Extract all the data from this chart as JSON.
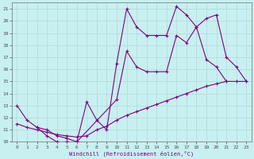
{
  "xlabel": "Windchill (Refroidissement éolien,°C)",
  "bg_color": "#c8f0f0",
  "grid_color": "#b0d8d8",
  "line_color": "#800080",
  "xlim": [
    -0.5,
    23.5
  ],
  "ylim": [
    10,
    21.5
  ],
  "yticks": [
    10,
    11,
    12,
    13,
    14,
    15,
    16,
    17,
    18,
    19,
    20,
    21
  ],
  "xticks": [
    0,
    1,
    2,
    3,
    4,
    5,
    6,
    7,
    8,
    9,
    10,
    11,
    12,
    13,
    14,
    15,
    16,
    17,
    18,
    19,
    20,
    21,
    22,
    23
  ],
  "line1_x": [
    0,
    1,
    2,
    3,
    4,
    5,
    6,
    7,
    8,
    9,
    10,
    11,
    12,
    13,
    14,
    15,
    16,
    17,
    18,
    19,
    20,
    21
  ],
  "line1_y": [
    13.0,
    11.8,
    11.2,
    10.5,
    10.0,
    10.0,
    10.0,
    13.3,
    11.8,
    11.0,
    16.5,
    21.0,
    19.5,
    18.8,
    18.8,
    18.8,
    21.2,
    20.5,
    19.5,
    16.8,
    16.2,
    15.0
  ],
  "line2_x": [
    2,
    3,
    4,
    5,
    6,
    10,
    11,
    12,
    13,
    14,
    15,
    16,
    17,
    18,
    19,
    20,
    21,
    22,
    23
  ],
  "line2_y": [
    11.2,
    11.0,
    10.5,
    10.3,
    10.0,
    13.5,
    17.5,
    16.2,
    15.8,
    15.8,
    15.8,
    18.8,
    18.2,
    19.5,
    20.2,
    20.5,
    17.0,
    16.2,
    15.0
  ],
  "line3_x": [
    0,
    1,
    2,
    3,
    4,
    5,
    6,
    7,
    8,
    9,
    10,
    11,
    12,
    13,
    14,
    15,
    16,
    17,
    18,
    19,
    20,
    21,
    22,
    23
  ],
  "line3_y": [
    11.5,
    11.2,
    11.0,
    10.8,
    10.6,
    10.5,
    10.4,
    10.5,
    11.0,
    11.3,
    11.8,
    12.2,
    12.5,
    12.8,
    13.1,
    13.4,
    13.7,
    14.0,
    14.3,
    14.6,
    14.8,
    15.0,
    15.0,
    15.0
  ]
}
